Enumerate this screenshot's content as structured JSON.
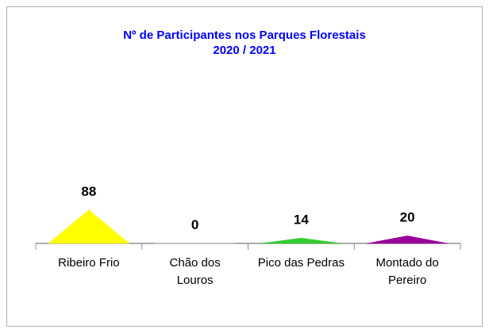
{
  "chart_data": {
    "type": "pyramid",
    "title": "Nº de Participantes nos Parques Florestais",
    "subtitle": "2020 / 2021",
    "categories": [
      "Ribeiro Frio",
      "Chão dos Louros",
      "Pico das Pedras",
      "Montado do Pereiro"
    ],
    "values": [
      88,
      0,
      14,
      20
    ],
    "colors": [
      "#ffff00",
      "#c0c0c0",
      "#33cc33",
      "#990099"
    ]
  }
}
